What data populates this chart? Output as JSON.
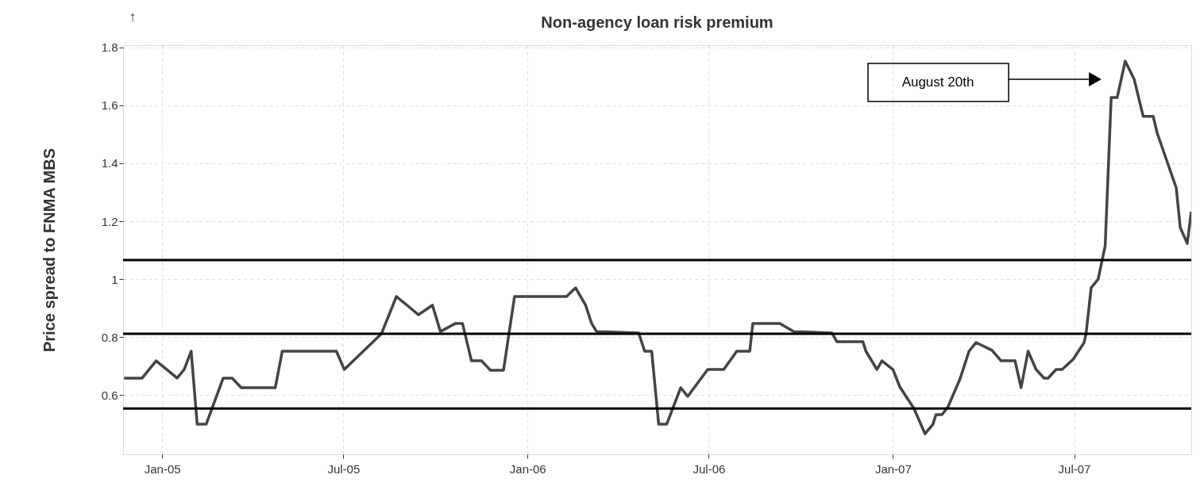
{
  "chart_data": {
    "type": "line",
    "title": "Non-agency loan risk premium",
    "ylabel": "Price spread to FNMA MBS",
    "annotations": [
      "↑",
      "August 20th"
    ],
    "x": [
      "2004-11-24",
      "2004-12-12",
      "2004-12-26",
      "2005-01-16",
      "2005-01-23",
      "2005-01-30",
      "2005-02-05",
      "2005-02-14",
      "2005-03-03",
      "2005-03-12",
      "2005-03-21",
      "2005-04-24",
      "2005-05-01",
      "2005-06-24",
      "2005-07-02",
      "2005-08-08",
      "2005-08-23",
      "2005-09-14",
      "2005-09-28",
      "2005-10-06",
      "2005-10-21",
      "2005-10-28",
      "2005-11-06",
      "2005-11-16",
      "2005-11-25",
      "2005-12-08",
      "2005-12-19",
      "2006-02-09",
      "2006-02-18",
      "2006-02-28",
      "2006-03-06",
      "2006-03-11",
      "2006-04-22",
      "2006-04-28",
      "2006-05-05",
      "2006-05-12",
      "2006-05-20",
      "2006-06-03",
      "2006-06-10",
      "2006-06-30",
      "2006-07-16",
      "2006-07-29",
      "2006-08-11",
      "2006-08-14",
      "2006-09-10",
      "2006-09-24",
      "2006-11-01",
      "2006-11-06",
      "2006-12-02",
      "2006-12-05",
      "2006-12-16",
      "2006-12-21",
      "2007-01-01",
      "2007-01-08",
      "2007-01-22",
      "2007-02-02",
      "2007-02-10",
      "2007-02-13",
      "2007-02-19",
      "2007-02-25",
      "2007-03-09",
      "2007-03-18",
      "2007-03-25",
      "2007-04-10",
      "2007-04-19",
      "2007-05-03",
      "2007-05-09",
      "2007-05-16",
      "2007-05-24",
      "2007-06-01",
      "2007-06-05",
      "2007-06-13",
      "2007-06-19",
      "2007-06-30",
      "2007-07-11",
      "2007-07-13",
      "2007-07-18",
      "2007-07-25",
      "2007-08-01",
      "2007-08-07",
      "2007-08-13",
      "2007-08-21",
      "2007-08-30",
      "2007-09-08",
      "2007-09-18",
      "2007-09-22",
      "2007-10-11",
      "2007-10-15",
      "2007-10-22",
      "2007-10-26"
    ],
    "series": [
      {
        "color": "#444444",
        "values": [
          0.658,
          0.658,
          0.718,
          0.658,
          0.688,
          0.751,
          0.499,
          0.499,
          0.658,
          0.658,
          0.625,
          0.625,
          0.751,
          0.751,
          0.688,
          0.811,
          0.94,
          0.877,
          0.91,
          0.819,
          0.847,
          0.847,
          0.718,
          0.718,
          0.685,
          0.685,
          0.94,
          0.94,
          0.97,
          0.91,
          0.847,
          0.819,
          0.814,
          0.751,
          0.751,
          0.499,
          0.499,
          0.625,
          0.595,
          0.688,
          0.688,
          0.751,
          0.751,
          0.847,
          0.847,
          0.819,
          0.814,
          0.784,
          0.784,
          0.751,
          0.688,
          0.718,
          0.688,
          0.627,
          0.553,
          0.466,
          0.499,
          0.532,
          0.532,
          0.559,
          0.655,
          0.751,
          0.781,
          0.754,
          0.718,
          0.718,
          0.625,
          0.751,
          0.688,
          0.658,
          0.658,
          0.688,
          0.688,
          0.723,
          0.781,
          0.814,
          0.97,
          1.0,
          1.115,
          1.627,
          1.627,
          1.753,
          1.69,
          1.562,
          1.562,
          1.504,
          1.315,
          1.178,
          1.123,
          1.233
        ]
      }
    ],
    "xlim": [
      "2004-11-23",
      "2007-10-26"
    ],
    "xticks": [
      {
        "value": "2005-01-01",
        "label": "Jan-05"
      },
      {
        "value": "2005-07-01",
        "label": "Jul-05"
      },
      {
        "value": "2006-01-01",
        "label": "Jan-06"
      },
      {
        "value": "2006-07-01",
        "label": "Jul-06"
      },
      {
        "value": "2007-01-01",
        "label": "Jan-07"
      },
      {
        "value": "2007-07-01",
        "label": "Jul-07"
      }
    ],
    "ylim": [
      0.395,
      1.808
    ],
    "yticks": [
      0.6,
      0.8,
      1,
      1.2,
      1.4,
      1.6,
      1.8
    ],
    "ref_lines": [
      {
        "axis": "y",
        "value": 1.066,
        "color": "#000000"
      },
      {
        "axis": "y",
        "value": 0.811,
        "color": "#000000"
      },
      {
        "axis": "y",
        "value": 0.553,
        "color": "#000000"
      }
    ],
    "grid": true,
    "line_style": "solid",
    "marker": "none"
  }
}
